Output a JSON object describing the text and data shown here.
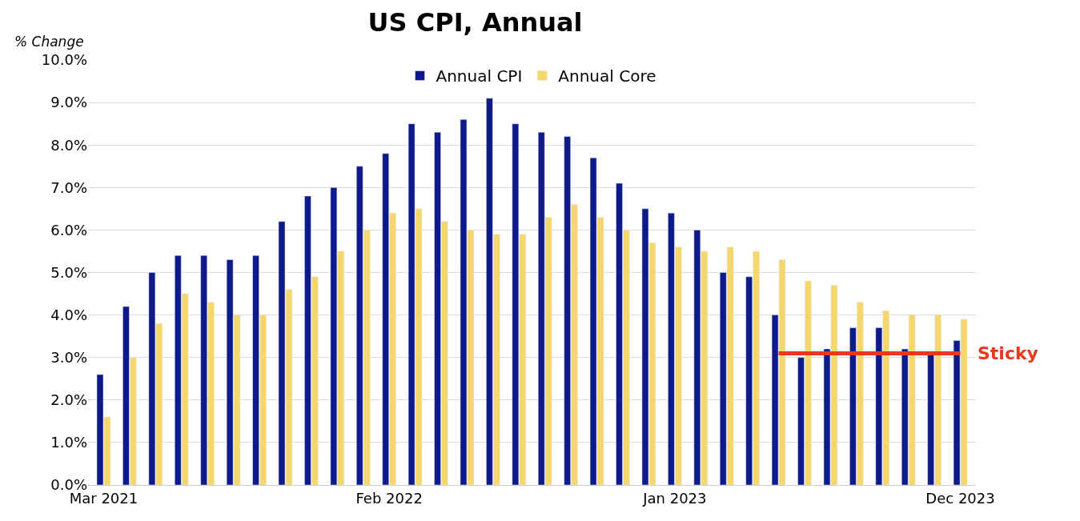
{
  "chart_data": {
    "type": "bar",
    "title": "US CPI, Annual",
    "ylabel": "% Change",
    "categories": [
      "Mar 2021",
      null,
      null,
      null,
      null,
      null,
      null,
      null,
      null,
      null,
      null,
      "Feb 2022",
      null,
      null,
      null,
      null,
      null,
      null,
      null,
      null,
      null,
      null,
      "Jan 2023",
      null,
      null,
      null,
      null,
      null,
      null,
      null,
      null,
      null,
      null,
      "Dec 2023"
    ],
    "series": [
      {
        "name": "Annual CPI",
        "color": "#0f1a8a",
        "values": [
          2.6,
          4.2,
          5.0,
          5.4,
          5.4,
          5.3,
          5.4,
          6.2,
          6.8,
          7.0,
          7.5,
          7.8,
          8.5,
          8.3,
          8.6,
          9.1,
          8.5,
          8.3,
          8.2,
          7.7,
          7.1,
          6.5,
          6.4,
          6.0,
          5.0,
          4.9,
          4.0,
          3.0,
          3.2,
          3.7,
          3.7,
          3.2,
          3.1,
          3.4
        ]
      },
      {
        "name": "Annual Core",
        "color": "#f5d76e",
        "values": [
          1.6,
          3.0,
          3.8,
          4.5,
          4.3,
          4.0,
          4.0,
          4.6,
          4.9,
          5.5,
          6.0,
          6.4,
          6.5,
          6.2,
          6.0,
          5.9,
          5.9,
          6.3,
          6.6,
          6.3,
          6.0,
          5.7,
          5.6,
          5.5,
          5.6,
          5.5,
          5.3,
          4.8,
          4.7,
          4.3,
          4.1,
          4.0,
          4.0,
          3.9
        ]
      },
      {
        "type": "line",
        "name": "Sticky",
        "color": "#e8391d",
        "values": [
          null,
          null,
          null,
          null,
          null,
          null,
          null,
          null,
          null,
          null,
          null,
          null,
          null,
          null,
          null,
          null,
          null,
          null,
          null,
          null,
          null,
          null,
          null,
          null,
          null,
          null,
          3.1,
          3.1,
          3.1,
          3.1,
          3.1,
          3.1,
          3.1,
          3.1
        ]
      }
    ],
    "ylim": [
      0,
      10
    ],
    "yticks": [
      {
        "value": 0,
        "label": "0.0%"
      },
      {
        "value": 1,
        "label": "1.0%"
      },
      {
        "value": 2,
        "label": "2.0%"
      },
      {
        "value": 3,
        "label": "3.0%"
      },
      {
        "value": 4,
        "label": "4.0%"
      },
      {
        "value": 5,
        "label": "5.0%"
      },
      {
        "value": 6,
        "label": "6.0%"
      },
      {
        "value": 7,
        "label": "7.0%"
      },
      {
        "value": 8,
        "label": "8.0%"
      },
      {
        "value": 9,
        "label": "9.0%"
      },
      {
        "value": 10,
        "label": "10.0%"
      }
    ],
    "grid": "y",
    "legend": "top"
  }
}
